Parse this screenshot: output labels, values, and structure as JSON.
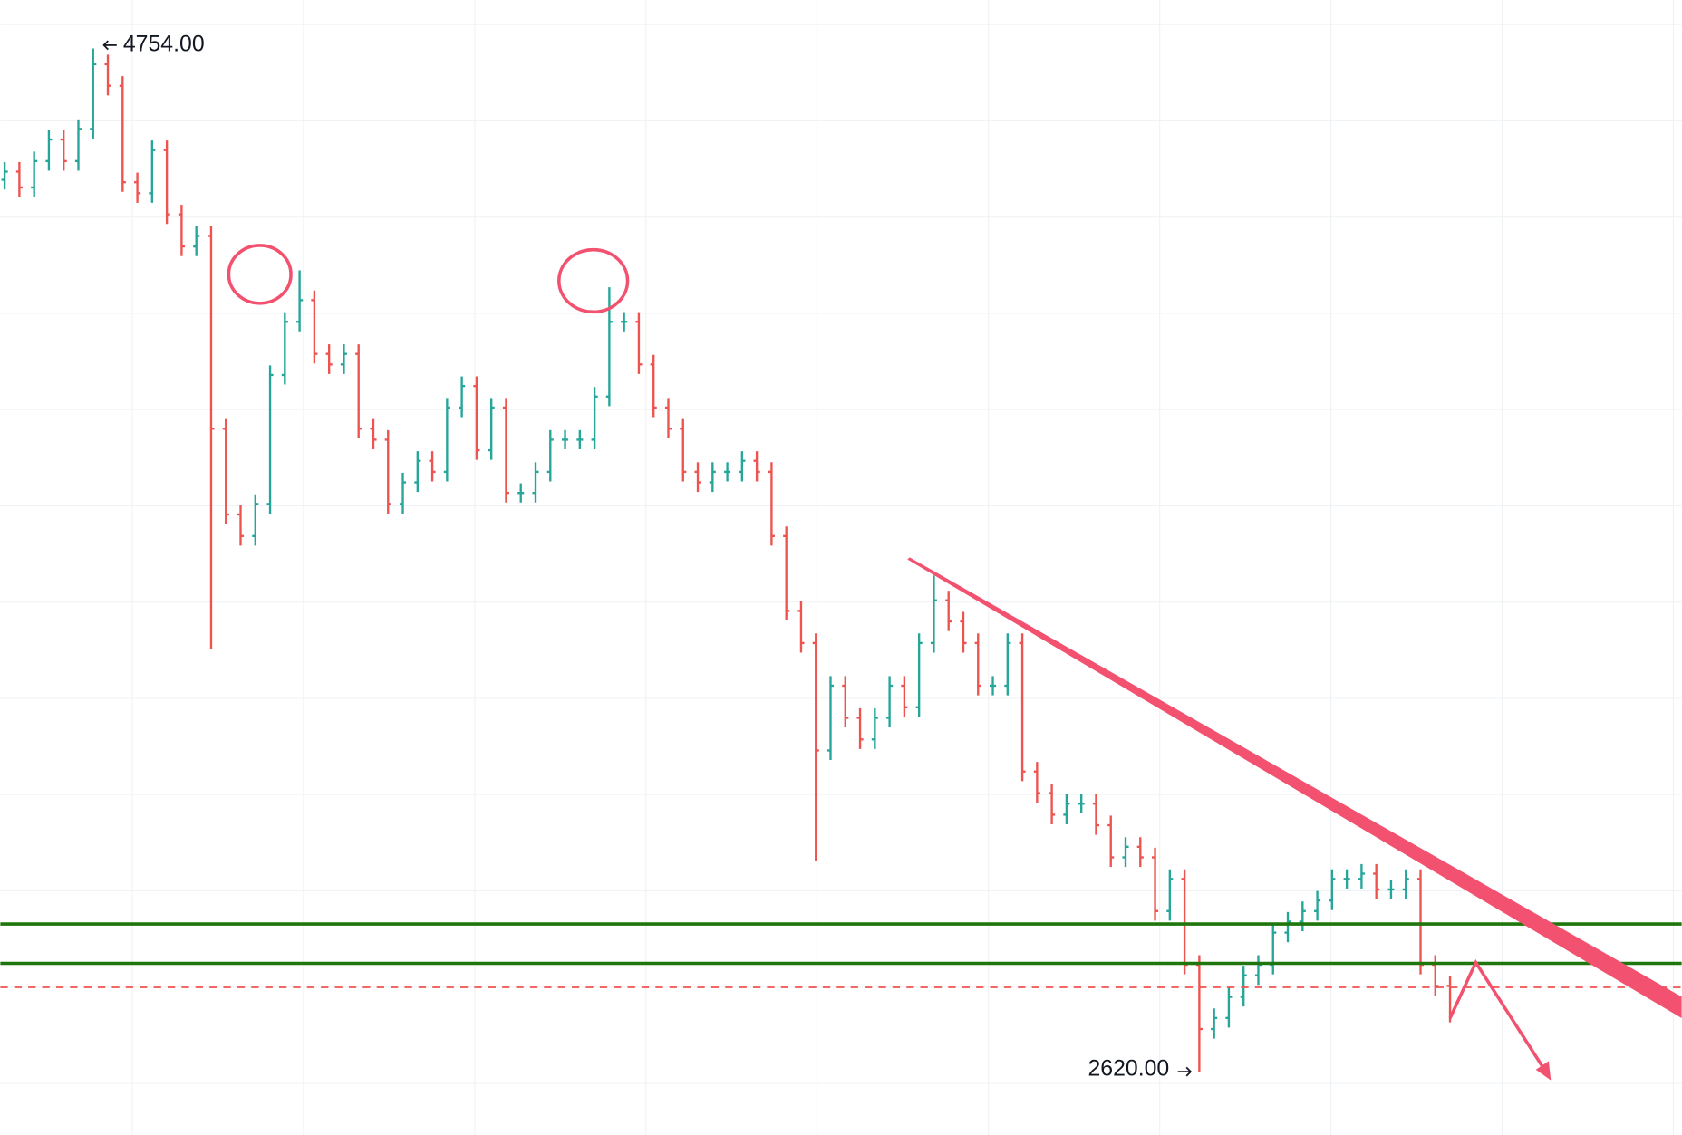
{
  "chart_data": {
    "type": "ohlc",
    "ylim": [
      2488,
      4855
    ],
    "up_color": "#26a69a",
    "down_color": "#ef5350",
    "bars": [
      [
        4480,
        4517,
        4460,
        4497
      ],
      [
        4497,
        4517,
        4444,
        4464
      ],
      [
        4464,
        4539,
        4444,
        4519
      ],
      [
        4519,
        4584,
        4499,
        4564
      ],
      [
        4564,
        4584,
        4499,
        4519
      ],
      [
        4519,
        4606,
        4499,
        4586
      ],
      [
        4586,
        4754,
        4566,
        4721
      ],
      [
        4721,
        4741,
        4656,
        4676
      ],
      [
        4676,
        4696,
        4455,
        4475
      ],
      [
        4475,
        4495,
        4432,
        4452
      ],
      [
        4452,
        4562,
        4432,
        4542
      ],
      [
        4542,
        4562,
        4388,
        4408
      ],
      [
        4408,
        4428,
        4321,
        4341
      ],
      [
        4341,
        4383,
        4321,
        4363
      ],
      [
        4363,
        4383,
        3502,
        3961
      ],
      [
        3961,
        3981,
        3762,
        3782
      ],
      [
        3782,
        3802,
        3717,
        3737
      ],
      [
        3737,
        3824,
        3717,
        3804
      ],
      [
        3804,
        4093,
        3784,
        4073
      ],
      [
        4073,
        4204,
        4053,
        4184
      ],
      [
        4184,
        4291,
        4164,
        4229
      ],
      [
        4229,
        4249,
        4097,
        4117
      ],
      [
        4117,
        4137,
        4075,
        4095
      ],
      [
        4095,
        4137,
        4075,
        4117
      ],
      [
        4117,
        4137,
        3941,
        3961
      ],
      [
        3961,
        3981,
        3918,
        3938
      ],
      [
        3938,
        3958,
        3784,
        3804
      ],
      [
        3804,
        3869,
        3784,
        3849
      ],
      [
        3849,
        3914,
        3829,
        3894
      ],
      [
        3894,
        3914,
        3851,
        3871
      ],
      [
        3871,
        4025,
        3851,
        4005
      ],
      [
        4005,
        4070,
        3985,
        4050
      ],
      [
        4050,
        4070,
        3896,
        3916
      ],
      [
        3916,
        4025,
        3896,
        4005
      ],
      [
        4005,
        4025,
        3807,
        3827
      ],
      [
        3827,
        3847,
        3807,
        3827
      ],
      [
        3827,
        3891,
        3807,
        3871
      ],
      [
        3871,
        3958,
        3851,
        3938
      ],
      [
        3938,
        3958,
        3918,
        3938
      ],
      [
        3938,
        3958,
        3918,
        3938
      ],
      [
        3938,
        4048,
        3918,
        4028
      ],
      [
        4028,
        4256,
        4008,
        4184
      ],
      [
        4184,
        4204,
        4164,
        4184
      ],
      [
        4184,
        4204,
        4075,
        4095
      ],
      [
        4095,
        4115,
        3985,
        4005
      ],
      [
        4005,
        4025,
        3941,
        3961
      ],
      [
        3961,
        3981,
        3851,
        3871
      ],
      [
        3871,
        3891,
        3829,
        3849
      ],
      [
        3849,
        3891,
        3829,
        3871
      ],
      [
        3871,
        3891,
        3851,
        3871
      ],
      [
        3871,
        3914,
        3851,
        3894
      ],
      [
        3894,
        3914,
        3851,
        3871
      ],
      [
        3871,
        3891,
        3717,
        3737
      ],
      [
        3737,
        3757,
        3561,
        3581
      ],
      [
        3581,
        3601,
        3494,
        3514
      ],
      [
        3514,
        3534,
        3060,
        3290
      ],
      [
        3290,
        3445,
        3270,
        3425
      ],
      [
        3425,
        3445,
        3338,
        3358
      ],
      [
        3358,
        3378,
        3293,
        3313
      ],
      [
        3313,
        3378,
        3293,
        3358
      ],
      [
        3358,
        3445,
        3338,
        3425
      ],
      [
        3425,
        3445,
        3360,
        3380
      ],
      [
        3380,
        3534,
        3360,
        3514
      ],
      [
        3514,
        3655,
        3494,
        3603
      ],
      [
        3603,
        3623,
        3539,
        3559
      ],
      [
        3559,
        3579,
        3494,
        3514
      ],
      [
        3514,
        3534,
        3405,
        3425
      ],
      [
        3425,
        3445,
        3405,
        3425
      ],
      [
        3425,
        3534,
        3405,
        3514
      ],
      [
        3514,
        3534,
        3226,
        3246
      ],
      [
        3246,
        3266,
        3181,
        3201
      ],
      [
        3201,
        3221,
        3136,
        3156
      ],
      [
        3156,
        3199,
        3136,
        3179
      ],
      [
        3179,
        3199,
        3159,
        3179
      ],
      [
        3179,
        3199,
        3114,
        3134
      ],
      [
        3134,
        3154,
        3047,
        3067
      ],
      [
        3067,
        3109,
        3047,
        3089
      ],
      [
        3089,
        3109,
        3047,
        3067
      ],
      [
        3067,
        3087,
        2935,
        2955
      ],
      [
        2955,
        3042,
        2935,
        3022
      ],
      [
        3022,
        3042,
        2823,
        2843
      ],
      [
        2843,
        2863,
        2620,
        2709
      ],
      [
        2709,
        2752,
        2689,
        2732
      ],
      [
        2732,
        2796,
        2712,
        2776
      ],
      [
        2776,
        2841,
        2756,
        2821
      ],
      [
        2821,
        2863,
        2801,
        2843
      ],
      [
        2843,
        2930,
        2823,
        2910
      ],
      [
        2910,
        2953,
        2890,
        2933
      ],
      [
        2933,
        2975,
        2913,
        2955
      ],
      [
        2955,
        2997,
        2935,
        2977
      ],
      [
        2977,
        3042,
        2957,
        3022
      ],
      [
        3022,
        3042,
        3002,
        3022
      ],
      [
        3022,
        3053,
        3002,
        3033
      ],
      [
        3033,
        3053,
        2980,
        3000
      ],
      [
        3000,
        3020,
        2980,
        3000
      ],
      [
        3000,
        3042,
        2980,
        3022
      ],
      [
        3022,
        3042,
        2823,
        2843
      ],
      [
        2843,
        2863,
        2779,
        2799
      ],
      [
        2799,
        2819,
        2723,
        2743
      ]
    ],
    "levels": [
      {
        "value": 2928,
        "color": "#1e760c",
        "style": "solid"
      },
      {
        "value": 2846,
        "color": "#1e760c",
        "style": "solid"
      },
      {
        "value": 2796,
        "color": "#ef5350",
        "style": "dashed"
      }
    ],
    "annotations": [
      {
        "value": 4754,
        "label": "4754.00",
        "bar": 6,
        "side": "right"
      },
      {
        "value": 2620,
        "label": "2620.00",
        "bar": 81,
        "side": "left"
      }
    ]
  }
}
